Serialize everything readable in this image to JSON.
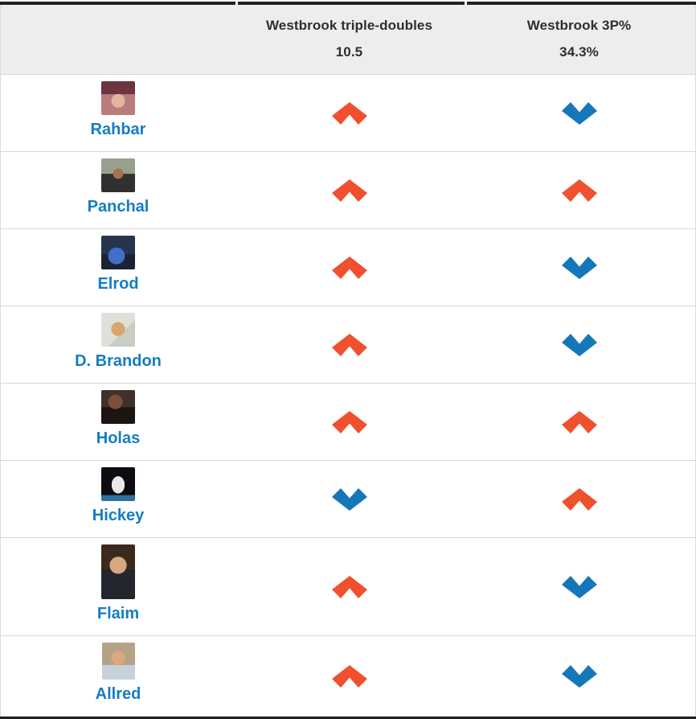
{
  "table": {
    "columns": [
      {
        "label": "Westbrook triple-doubles",
        "value": "10.5"
      },
      {
        "label": "Westbrook 3P%",
        "value": "34.3%"
      }
    ],
    "rows": [
      {
        "name": "Rahbar",
        "picks": [
          "over",
          "under"
        ]
      },
      {
        "name": "Panchal",
        "picks": [
          "over",
          "over"
        ]
      },
      {
        "name": "Elrod",
        "picks": [
          "over",
          "under"
        ]
      },
      {
        "name": "D. Brandon",
        "picks": [
          "over",
          "under"
        ]
      },
      {
        "name": "Holas",
        "picks": [
          "over",
          "over"
        ]
      },
      {
        "name": "Hickey",
        "picks": [
          "under",
          "over"
        ]
      },
      {
        "name": "Flaim",
        "picks": [
          "over",
          "under"
        ]
      },
      {
        "name": "Allred",
        "picks": [
          "over",
          "under"
        ]
      }
    ],
    "colors": {
      "over": "#f0502d",
      "under": "#1577b9",
      "name_link": "#147dc2",
      "header_bg": "#ededed",
      "header_text": "#2e2e2e",
      "border_dark": "#222222",
      "row_divider": "#d8d8d8"
    }
  }
}
